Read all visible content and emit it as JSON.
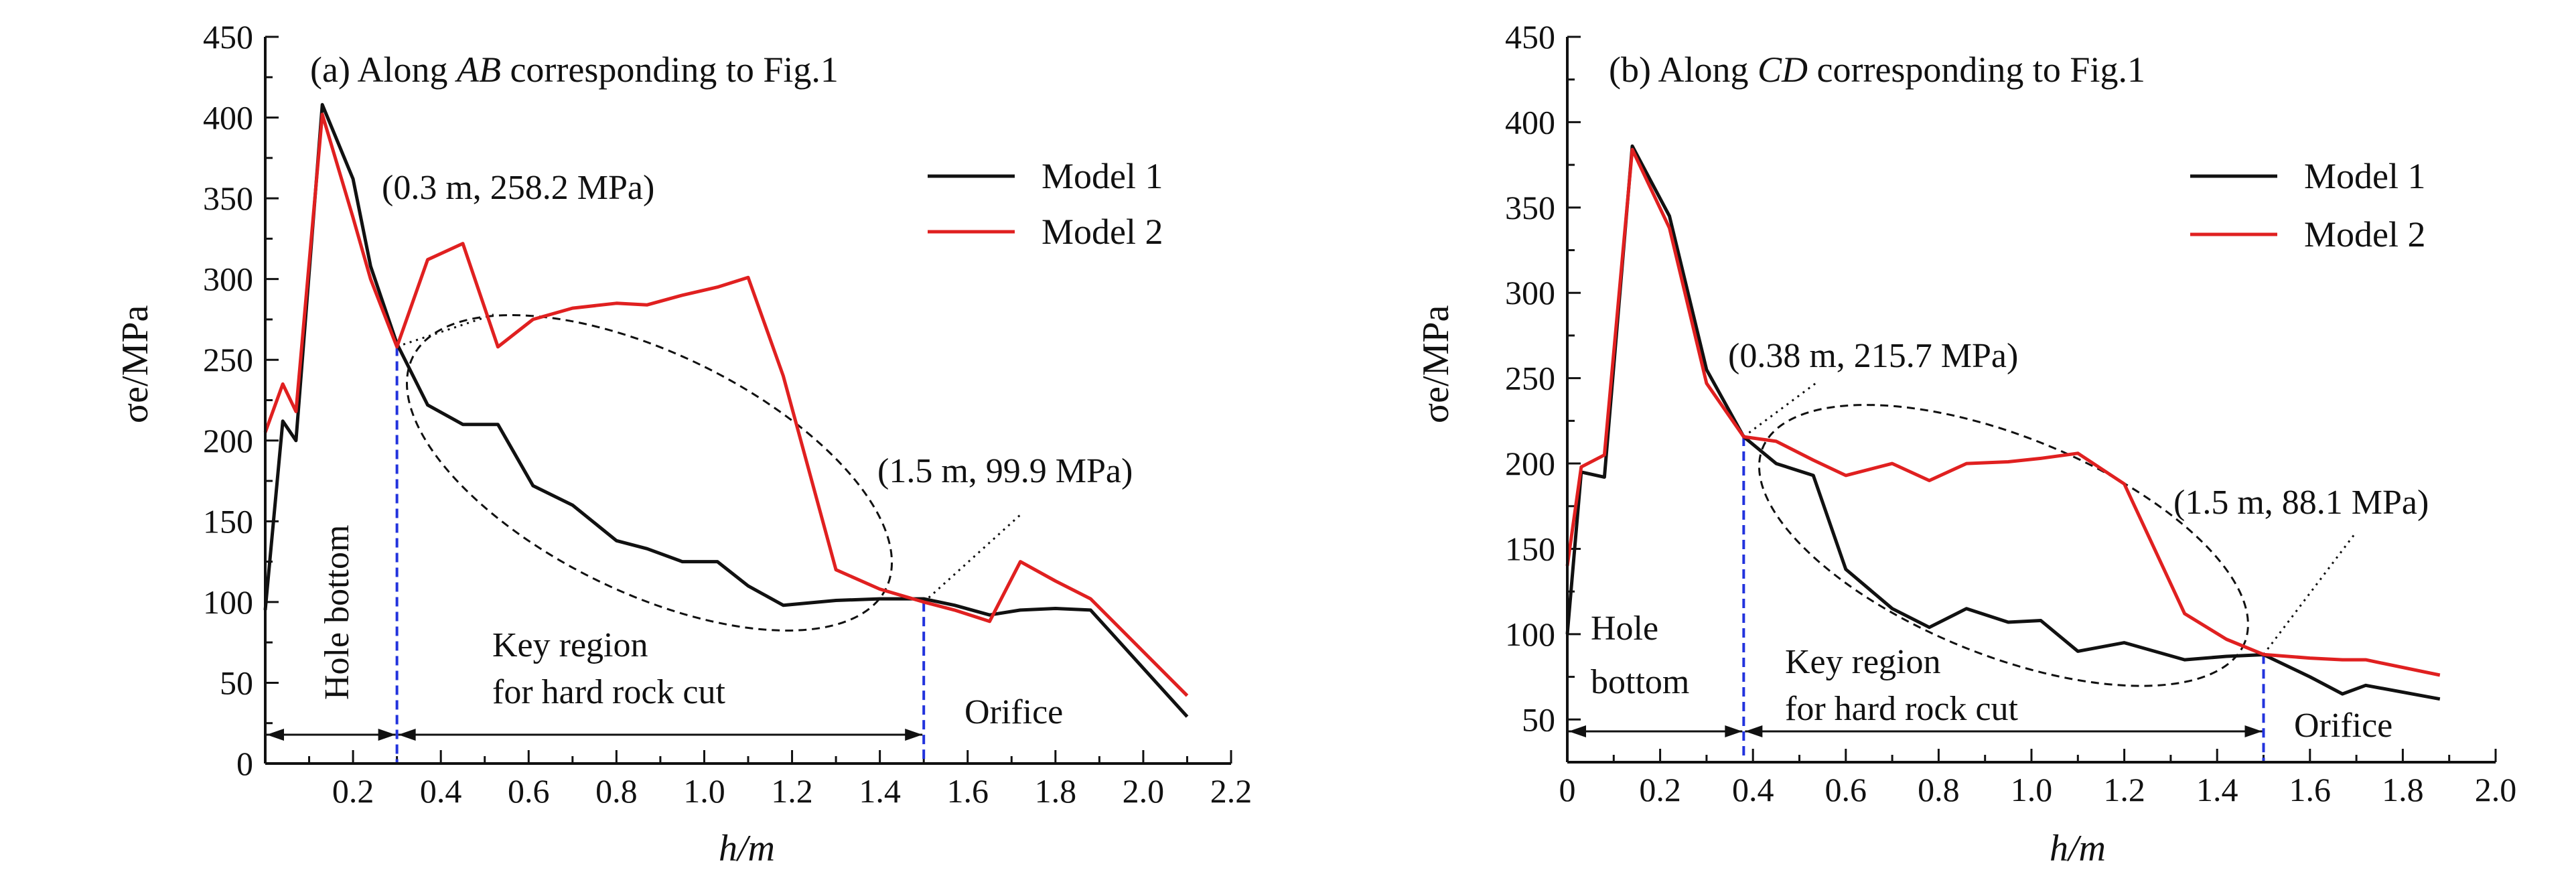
{
  "chart_data": [
    {
      "type": "line",
      "title": "(a) Along AB corresponding to Fig.1",
      "title_parts": {
        "prefix": "(a) Along ",
        "italic": "AB",
        "suffix": " corresponding to Fig.1"
      },
      "xlabel": "h/m",
      "ylabel": "σe/MPa",
      "xlim": [
        0,
        2.2
      ],
      "ylim": [
        0,
        450
      ],
      "x_ticks": [
        0.2,
        0.4,
        0.6,
        0.8,
        1.0,
        1.2,
        1.4,
        1.6,
        1.8,
        2.0,
        2.2
      ],
      "x_tick_labels": [
        "0.2",
        "0.4",
        "0.6",
        "0.8",
        "1.0",
        "1.2",
        "1.4",
        "1.6",
        "1.8",
        "2.0",
        "2.2"
      ],
      "y_ticks": [
        0,
        50,
        100,
        150,
        200,
        250,
        300,
        350,
        400,
        450
      ],
      "y_tick_labels": [
        "0",
        "50",
        "100",
        "150",
        "200",
        "250",
        "300",
        "350",
        "400",
        "450"
      ],
      "grid": false,
      "legend_position": "top-right",
      "series": [
        {
          "name": "Model 1",
          "color": "#111111",
          "x": [
            0,
            0.04,
            0.07,
            0.13,
            0.2,
            0.24,
            0.3,
            0.37,
            0.45,
            0.53,
            0.61,
            0.7,
            0.8,
            0.87,
            0.95,
            1.03,
            1.1,
            1.18,
            1.3,
            1.4,
            1.5,
            1.57,
            1.65,
            1.72,
            1.8,
            1.88,
            2.1
          ],
          "y": [
            95,
            212,
            200,
            408,
            362,
            308,
            260,
            222,
            210,
            210,
            172,
            160,
            138,
            133,
            125,
            125,
            110,
            98,
            101,
            102,
            102,
            98,
            92,
            95,
            96,
            95,
            29
          ]
        },
        {
          "name": "Model 2",
          "color": "#e02020",
          "x": [
            0,
            0.04,
            0.07,
            0.13,
            0.2,
            0.24,
            0.3,
            0.37,
            0.45,
            0.53,
            0.61,
            0.7,
            0.8,
            0.87,
            0.95,
            1.03,
            1.1,
            1.18,
            1.3,
            1.4,
            1.5,
            1.57,
            1.65,
            1.72,
            1.8,
            1.88,
            2.1
          ],
          "y": [
            205,
            235,
            218,
            402,
            338,
            300,
            258,
            312,
            322,
            258,
            275,
            282,
            285,
            284,
            290,
            295,
            301,
            240,
            120,
            108,
            100,
            95,
            88,
            125,
            113,
            102,
            42
          ]
        }
      ],
      "annotations": [
        {
          "text": "(0.3 m, 258.2 MPa)",
          "x": 0.3,
          "y": 258.2
        },
        {
          "text": "(1.5 m, 99.9 MPa)",
          "x": 1.5,
          "y": 99.9
        }
      ],
      "region_labels": {
        "hole_bottom": "Hole bottom",
        "key_region_line1": "Key region",
        "key_region_line2": "for hard rock cut",
        "orifice": "Orifice"
      },
      "boundaries": [
        0.3,
        1.5
      ]
    },
    {
      "type": "line",
      "title": "(b) Along CD corresponding to Fig.1",
      "title_parts": {
        "prefix": "(b) Along ",
        "italic": "CD",
        "suffix": " corresponding to Fig.1"
      },
      "xlabel": "h/m",
      "ylabel": "σe/MPa",
      "xlim": [
        0,
        2.0
      ],
      "ylim": [
        25,
        450
      ],
      "x_ticks": [
        0,
        0.2,
        0.4,
        0.6,
        0.8,
        1.0,
        1.2,
        1.4,
        1.6,
        1.8,
        2.0
      ],
      "x_tick_labels": [
        "0",
        "0.2",
        "0.4",
        "0.6",
        "0.8",
        "1.0",
        "1.2",
        "1.4",
        "1.6",
        "1.8",
        "2.0"
      ],
      "y_ticks": [
        50,
        100,
        150,
        200,
        250,
        300,
        350,
        400,
        450
      ],
      "y_tick_labels": [
        "50",
        "100",
        "150",
        "200",
        "250",
        "300",
        "350",
        "400",
        "450"
      ],
      "grid": false,
      "legend_position": "top-right",
      "series": [
        {
          "name": "Model 1",
          "color": "#111111",
          "x": [
            0,
            0.03,
            0.08,
            0.14,
            0.22,
            0.3,
            0.38,
            0.45,
            0.53,
            0.6,
            0.7,
            0.78,
            0.86,
            0.95,
            1.02,
            1.1,
            1.2,
            1.33,
            1.42,
            1.5,
            1.6,
            1.67,
            1.72,
            1.88
          ],
          "y": [
            100,
            195,
            192,
            386,
            345,
            255,
            215.7,
            200,
            193,
            138,
            115,
            104,
            115,
            107,
            108,
            90,
            95,
            85,
            87,
            88,
            75,
            65,
            70,
            62
          ]
        },
        {
          "name": "Model 2",
          "color": "#e02020",
          "x": [
            0,
            0.03,
            0.08,
            0.14,
            0.22,
            0.3,
            0.38,
            0.45,
            0.53,
            0.6,
            0.7,
            0.78,
            0.86,
            0.95,
            1.02,
            1.1,
            1.2,
            1.33,
            1.42,
            1.5,
            1.6,
            1.67,
            1.72,
            1.88
          ],
          "y": [
            140,
            198,
            205,
            384,
            338,
            247,
            215.7,
            213,
            202,
            193,
            200,
            190,
            200,
            201,
            203,
            206,
            188,
            112,
            97,
            88.1,
            86,
            85,
            85,
            76
          ]
        }
      ],
      "annotations": [
        {
          "text": "(0.38 m, 215.7 MPa)",
          "x": 0.38,
          "y": 215.7
        },
        {
          "text": "(1.5 m, 88.1 MPa)",
          "x": 1.5,
          "y": 88.1
        }
      ],
      "region_labels": {
        "hole_bottom_line1": "Hole",
        "hole_bottom_line2": "bottom",
        "key_region_line1": "Key region",
        "key_region_line2": "for hard rock cut",
        "orifice": "Orifice"
      },
      "boundaries": [
        0.38,
        1.5
      ]
    }
  ]
}
